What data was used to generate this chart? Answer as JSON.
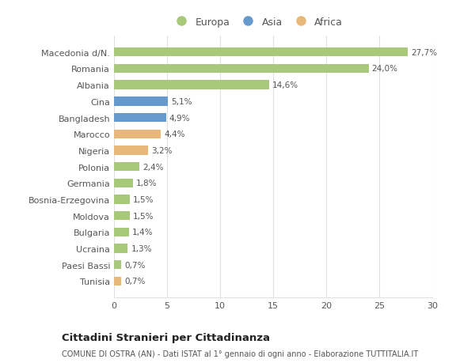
{
  "countries": [
    "Macedonia d/N.",
    "Romania",
    "Albania",
    "Cina",
    "Bangladesh",
    "Marocco",
    "Nigeria",
    "Polonia",
    "Germania",
    "Bosnia-Erzegovina",
    "Moldova",
    "Bulgaria",
    "Ucraina",
    "Paesi Bassi",
    "Tunisia"
  ],
  "values": [
    27.7,
    24.0,
    14.6,
    5.1,
    4.9,
    4.4,
    3.2,
    2.4,
    1.8,
    1.5,
    1.5,
    1.4,
    1.3,
    0.7,
    0.7
  ],
  "labels": [
    "27,7%",
    "24,0%",
    "14,6%",
    "5,1%",
    "4,9%",
    "4,4%",
    "3,2%",
    "2,4%",
    "1,8%",
    "1,5%",
    "1,5%",
    "1,4%",
    "1,3%",
    "0,7%",
    "0,7%"
  ],
  "continents": [
    "Europa",
    "Europa",
    "Europa",
    "Asia",
    "Asia",
    "Africa",
    "Africa",
    "Europa",
    "Europa",
    "Europa",
    "Europa",
    "Europa",
    "Europa",
    "Europa",
    "Africa"
  ],
  "colors": {
    "Europa": "#a8c87a",
    "Asia": "#6699cc",
    "Africa": "#e8b87a"
  },
  "title": "Cittadini Stranieri per Cittadinanza",
  "subtitle": "COMUNE DI OSTRA (AN) - Dati ISTAT al 1° gennaio di ogni anno - Elaborazione TUTTITALIA.IT",
  "xlim": [
    0,
    30
  ],
  "xticks": [
    0,
    5,
    10,
    15,
    20,
    25,
    30
  ],
  "background_color": "#ffffff",
  "plot_background": "#ffffff",
  "grid_color": "#e0e0e0",
  "text_color": "#555555",
  "bar_height": 0.55
}
